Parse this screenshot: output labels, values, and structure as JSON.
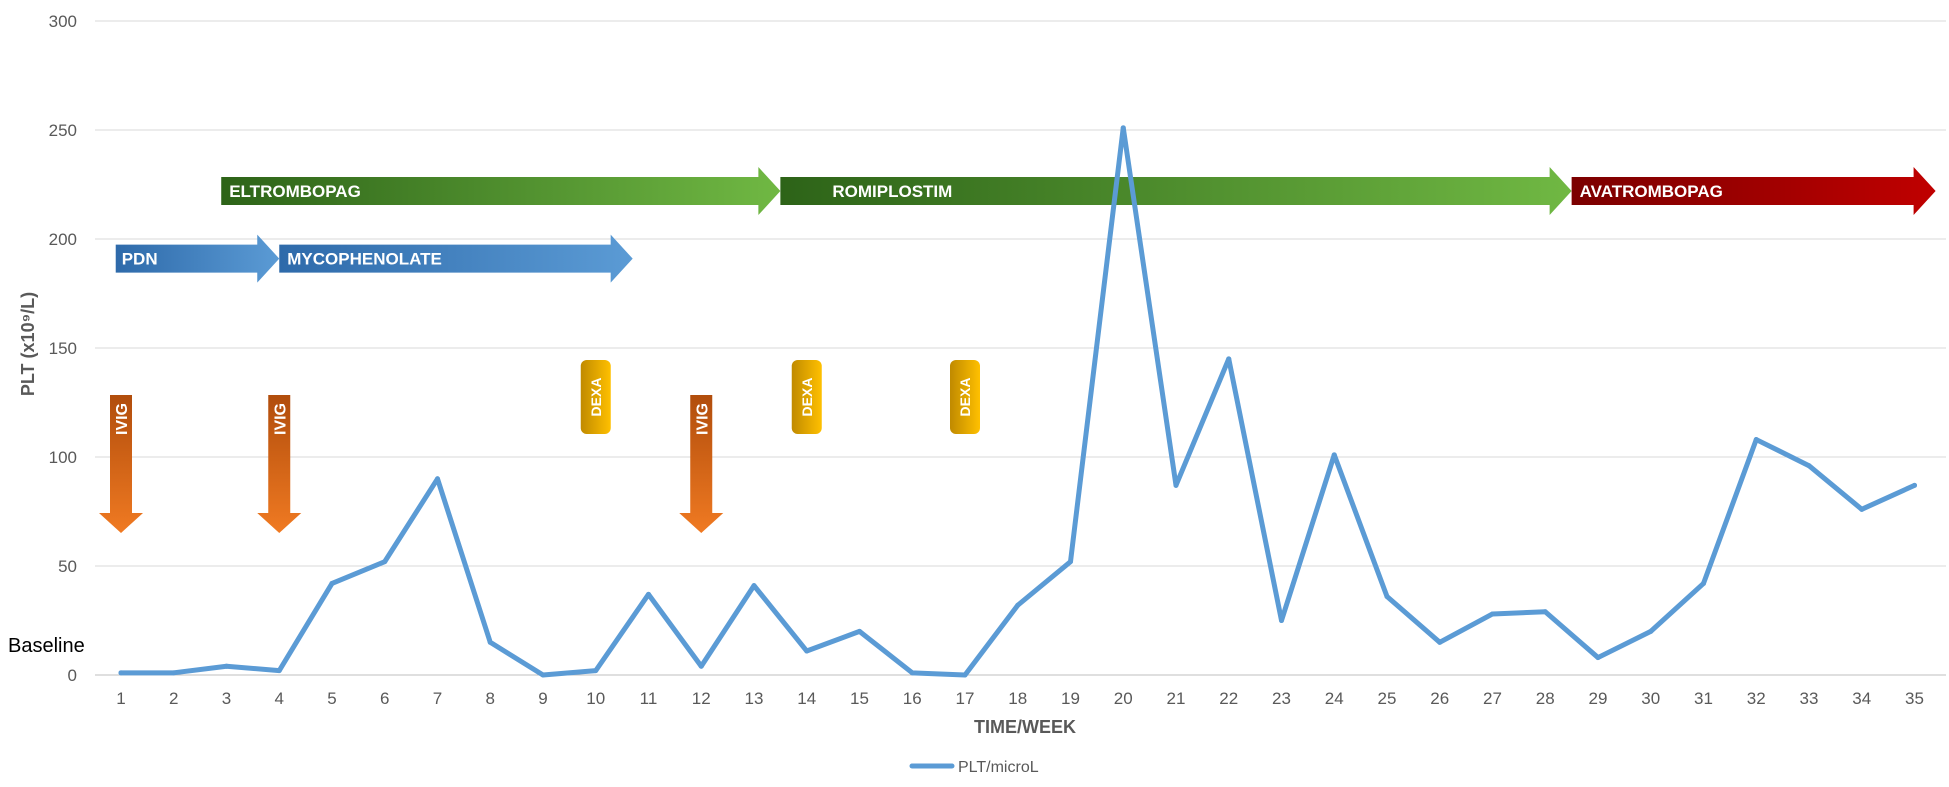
{
  "chart_data": {
    "type": "line",
    "ylabel": "PLT (x10⁹/L)",
    "xlabel": "TIME/WEEK",
    "ylim": [
      0,
      300
    ],
    "yticks": [
      0,
      50,
      100,
      150,
      200,
      250,
      300
    ],
    "grid": true,
    "legend_position": "bottom",
    "baseline_label": "Baseline",
    "x": [
      1,
      2,
      3,
      4,
      5,
      6,
      7,
      8,
      9,
      10,
      11,
      12,
      13,
      14,
      15,
      16,
      17,
      18,
      19,
      20,
      21,
      22,
      23,
      24,
      25,
      26,
      27,
      28,
      29,
      30,
      31,
      32,
      33,
      34,
      35
    ],
    "series": [
      {
        "name": "PLT/microL",
        "color": "#5b9bd5",
        "values": [
          1,
          1,
          4,
          2,
          42,
          52,
          90,
          15,
          0,
          2,
          37,
          4,
          41,
          11,
          20,
          1,
          0,
          32,
          52,
          251,
          87,
          145,
          25,
          101,
          36,
          15,
          28,
          29,
          8,
          20,
          42,
          108,
          96,
          76,
          87
        ]
      }
    ],
    "annotations": {
      "therapy_arrows": [
        {
          "label": "PDN",
          "start": 0.9,
          "end": 4.0,
          "level": 191,
          "colors": [
            "#2e6aaa",
            "#5b9bd5"
          ]
        },
        {
          "label": "MYCOPHENOLATE",
          "start": 4.0,
          "end": 10.7,
          "level": 191,
          "colors": [
            "#2e6aaa",
            "#5b9bd5"
          ]
        },
        {
          "label": "ELTROMBOPAG",
          "start": 2.9,
          "end": 13.5,
          "level": 222,
          "colors": [
            "#2d6318",
            "#70b843"
          ]
        },
        {
          "label": "ROMIPLOSTIM",
          "start": 13.5,
          "end": 28.5,
          "level": 222,
          "colors": [
            "#2d6318",
            "#70b843"
          ]
        },
        {
          "label": "AVATROMBOPAG",
          "start": 28.5,
          "end": 35.4,
          "level": 222,
          "colors": [
            "#7b0000",
            "#c00000"
          ]
        }
      ],
      "ivig_markers": [
        {
          "label": "IVIG",
          "week": 1,
          "colors": [
            "#b14d0c",
            "#f07a22"
          ]
        },
        {
          "label": "IVIG",
          "week": 4,
          "colors": [
            "#b14d0c",
            "#f07a22"
          ]
        },
        {
          "label": "IVIG",
          "week": 12,
          "colors": [
            "#b14d0c",
            "#f07a22"
          ]
        }
      ],
      "dexa_markers": [
        {
          "label": "DEXA",
          "week": 10,
          "colors": [
            "#c08a00",
            "#ffc000"
          ]
        },
        {
          "label": "DEXA",
          "week": 14,
          "colors": [
            "#c08a00",
            "#ffc000"
          ]
        },
        {
          "label": "DEXA",
          "week": 17,
          "colors": [
            "#c08a00",
            "#ffc000"
          ]
        }
      ]
    }
  }
}
